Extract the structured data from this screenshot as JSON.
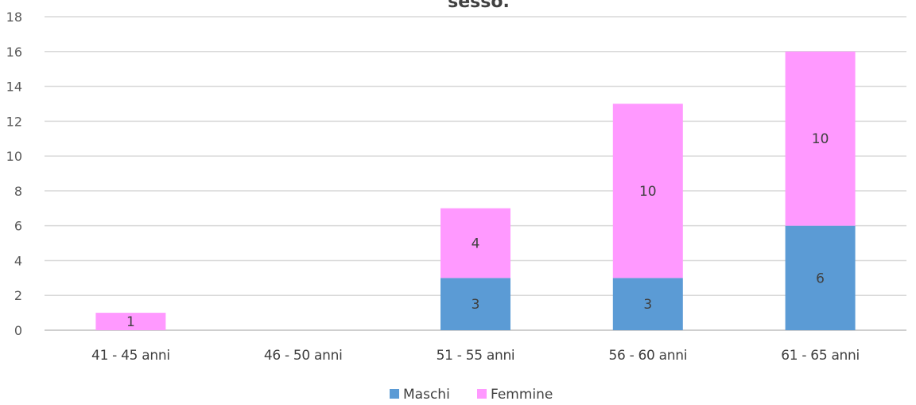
{
  "chart_data": {
    "type": "bar",
    "stacked": true,
    "title": "sesso.",
    "categories": [
      "41 - 45 anni",
      "46 - 50 anni",
      "51 - 55 anni",
      "56 - 60 anni",
      "61 - 65 anni"
    ],
    "series": [
      {
        "name": "Maschi",
        "color": "#5b9bd5",
        "values": [
          0,
          0,
          3,
          3,
          6
        ]
      },
      {
        "name": "Femmine",
        "color": "#ff99ff",
        "values": [
          1,
          0,
          4,
          10,
          10
        ]
      }
    ],
    "ylim": [
      0,
      18
    ],
    "yticks": [
      0,
      2,
      4,
      6,
      8,
      10,
      12,
      14,
      16,
      18
    ],
    "grid": true,
    "legend_position": "bottom",
    "data_labels": true
  }
}
